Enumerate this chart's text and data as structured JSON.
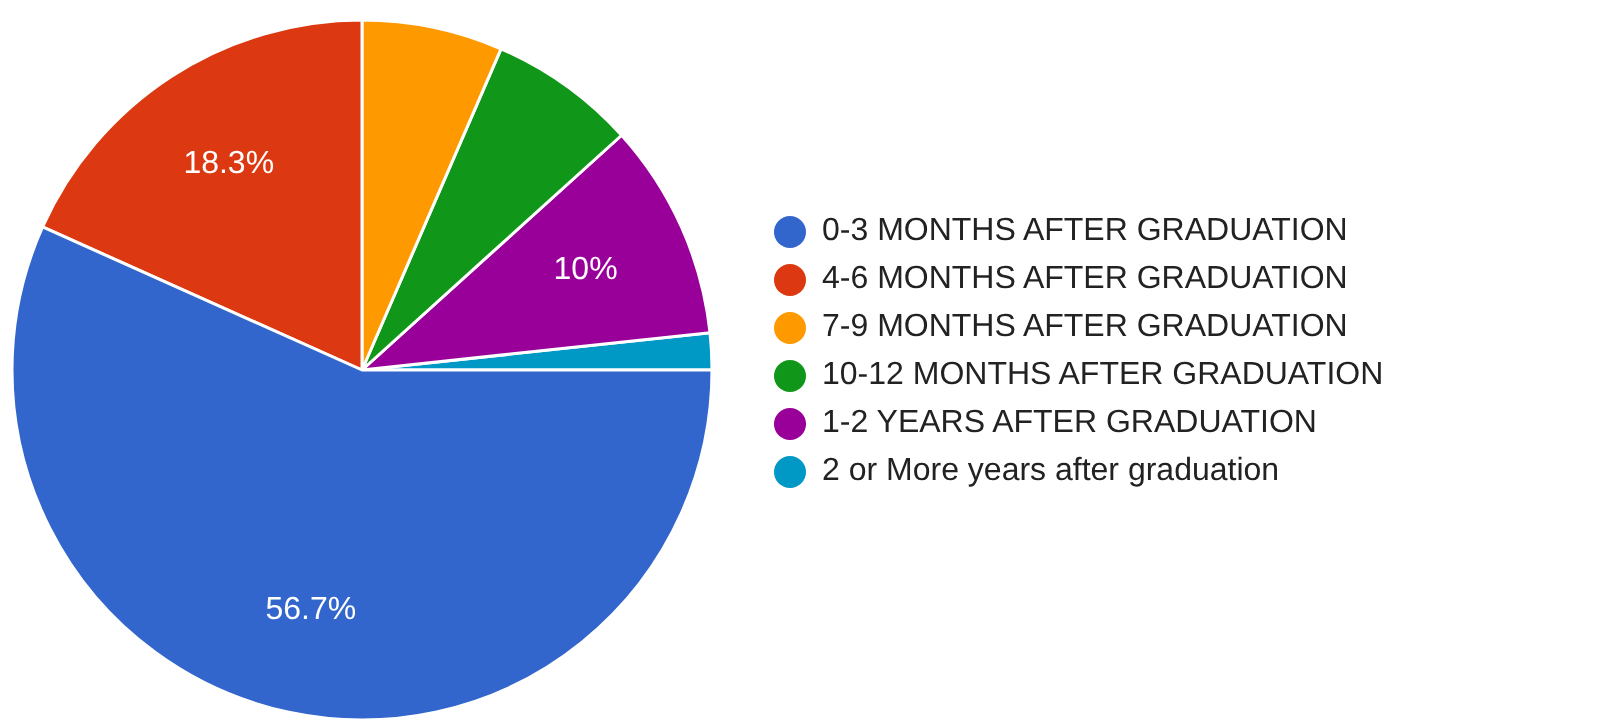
{
  "chart_data": {
    "type": "pie",
    "categories": [
      "0-3 MONTHS AFTER GRADUATION",
      "4-6 MONTHS AFTER GRADUATION",
      "7-9 MONTHS AFTER GRADUATION",
      "10-12 MONTHS AFTER GRADUATION",
      "1-2 YEARS AFTER GRADUATION",
      "2 or More years after graduation"
    ],
    "values": [
      56.7,
      18.3,
      6.5,
      6.8,
      10,
      1.7
    ],
    "value_labels": [
      "56.7%",
      "18.3%",
      null,
      null,
      "10%",
      null
    ],
    "colors": [
      "#3366cc",
      "#dc3912",
      "#ff9900",
      "#109618",
      "#990099",
      "#0099c6"
    ],
    "legend": "right"
  }
}
